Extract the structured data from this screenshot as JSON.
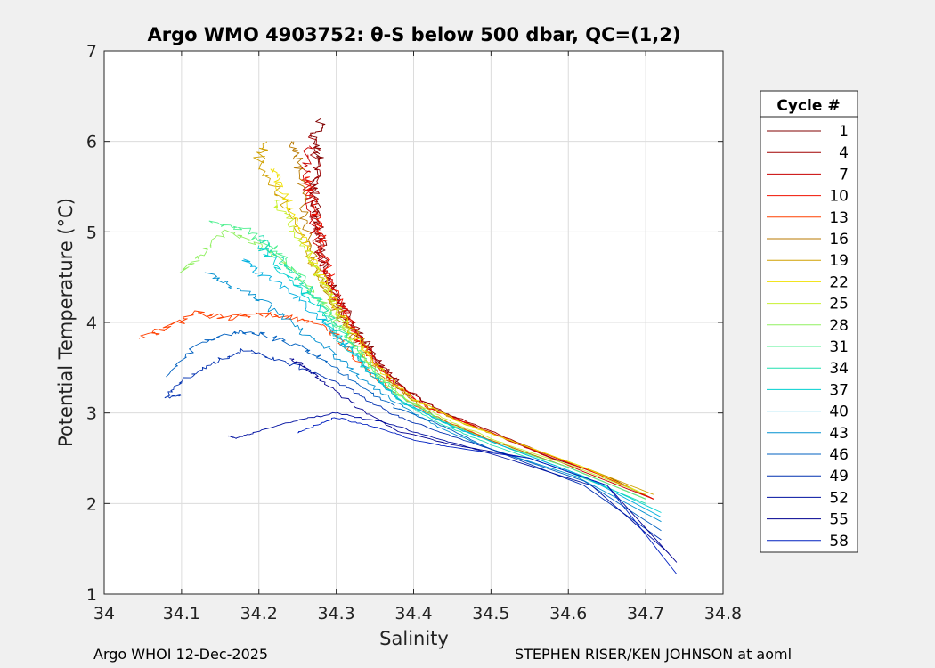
{
  "chart_data": {
    "type": "line",
    "title": "Argo WMO 4903752: θ-S below 500 dbar,  QC=(1,2)",
    "xlabel": "Salinity",
    "ylabel": "Potential Temperature (°C)",
    "xlim": [
      34,
      34.8
    ],
    "ylim": [
      1,
      7
    ],
    "xticks": [
      "34",
      "34.1",
      "34.2",
      "34.3",
      "34.4",
      "34.5",
      "34.6",
      "34.7",
      "34.8"
    ],
    "yticks": [
      "1",
      "2",
      "3",
      "4",
      "5",
      "6",
      "7"
    ],
    "grid": true,
    "legend": {
      "title": "Cycle #",
      "position": "right",
      "entries": [
        {
          "label": "1",
          "color": "#800000"
        },
        {
          "label": "4",
          "color": "#a00000"
        },
        {
          "label": "7",
          "color": "#c80000"
        },
        {
          "label": "10",
          "color": "#f01000"
        },
        {
          "label": "13",
          "color": "#ff4000"
        },
        {
          "label": "16",
          "color": "#b87800"
        },
        {
          "label": "19",
          "color": "#d0a000"
        },
        {
          "label": "22",
          "color": "#f0e000"
        },
        {
          "label": "25",
          "color": "#c8f030"
        },
        {
          "label": "28",
          "color": "#90f060"
        },
        {
          "label": "31",
          "color": "#50f090"
        },
        {
          "label": "34",
          "color": "#20e0b0"
        },
        {
          "label": "37",
          "color": "#00d0d0"
        },
        {
          "label": "40",
          "color": "#00b0e0"
        },
        {
          "label": "43",
          "color": "#0090d0"
        },
        {
          "label": "46",
          "color": "#0060c0"
        },
        {
          "label": "49",
          "color": "#0030b0"
        },
        {
          "label": "52",
          "color": "#0010a0"
        },
        {
          "label": "55",
          "color": "#000090"
        },
        {
          "label": "58",
          "color": "#0020c0"
        }
      ]
    },
    "series": [
      {
        "name": "1",
        "x": [
          34.71,
          34.65,
          34.58,
          34.5,
          34.44,
          34.39,
          34.36,
          34.34,
          34.32,
          34.3,
          34.285,
          34.28,
          34.275,
          34.27,
          34.28,
          34.27,
          34.28
        ],
        "y": [
          2.05,
          2.3,
          2.5,
          2.78,
          3.0,
          3.25,
          3.5,
          3.75,
          4.0,
          4.3,
          4.6,
          4.9,
          5.2,
          5.5,
          5.8,
          6.0,
          6.25
        ]
      },
      {
        "name": "4",
        "x": [
          34.71,
          34.64,
          34.57,
          34.5,
          34.44,
          34.39,
          34.36,
          34.33,
          34.31,
          34.295,
          34.28,
          34.275,
          34.27,
          34.275,
          34.27
        ],
        "y": [
          2.05,
          2.32,
          2.55,
          2.8,
          3.0,
          3.25,
          3.5,
          3.8,
          4.1,
          4.4,
          4.7,
          5.0,
          5.3,
          5.6,
          6.1
        ]
      },
      {
        "name": "7",
        "x": [
          34.71,
          34.62,
          34.55,
          34.48,
          34.42,
          34.38,
          34.35,
          34.33,
          34.31,
          34.29,
          34.28,
          34.27,
          34.265,
          34.26,
          34.265
        ],
        "y": [
          2.05,
          2.35,
          2.6,
          2.85,
          3.05,
          3.3,
          3.55,
          3.85,
          4.15,
          4.45,
          4.75,
          5.05,
          5.35,
          5.65,
          5.95
        ]
      },
      {
        "name": "10",
        "x": [
          34.71,
          34.64,
          34.56,
          34.48,
          34.42,
          34.38,
          34.35,
          34.33,
          34.31,
          34.295,
          34.285,
          34.28,
          34.27,
          34.26
        ],
        "y": [
          2.05,
          2.32,
          2.58,
          2.85,
          3.05,
          3.3,
          3.55,
          3.8,
          4.1,
          4.4,
          4.7,
          5.0,
          5.3,
          5.6
        ]
      },
      {
        "name": "13",
        "x": [
          34.7,
          34.6,
          34.5,
          34.43,
          34.37,
          34.33,
          34.3,
          34.27,
          34.24,
          34.2,
          34.16,
          34.12,
          34.08,
          34.045
        ],
        "y": [
          2.05,
          2.4,
          2.7,
          2.95,
          3.25,
          3.55,
          3.85,
          4.0,
          4.05,
          4.1,
          4.05,
          4.1,
          3.95,
          3.82
        ]
      },
      {
        "name": "16",
        "x": [
          34.7,
          34.6,
          34.5,
          34.43,
          34.38,
          34.34,
          34.31,
          34.29,
          34.27,
          34.26,
          34.255,
          34.25,
          34.245
        ],
        "y": [
          2.05,
          2.4,
          2.7,
          2.95,
          3.25,
          3.6,
          3.95,
          4.3,
          4.7,
          5.1,
          5.5,
          5.8,
          6.0
        ]
      },
      {
        "name": "19",
        "x": [
          34.71,
          34.62,
          34.53,
          34.46,
          34.4,
          34.36,
          34.33,
          34.3,
          34.28,
          34.26,
          34.24,
          34.22,
          34.2,
          34.21
        ],
        "y": [
          2.1,
          2.4,
          2.68,
          2.9,
          3.15,
          3.45,
          3.8,
          4.15,
          4.5,
          4.85,
          5.2,
          5.5,
          5.8,
          6.0
        ]
      },
      {
        "name": "22",
        "x": [
          34.7,
          34.62,
          34.53,
          34.46,
          34.4,
          34.36,
          34.33,
          34.3,
          34.28,
          34.26,
          34.245,
          34.23,
          34.22
        ],
        "y": [
          2.1,
          2.4,
          2.68,
          2.9,
          3.15,
          3.45,
          3.8,
          4.15,
          4.5,
          4.85,
          5.15,
          5.45,
          5.7
        ]
      },
      {
        "name": "25",
        "x": [
          34.7,
          34.61,
          34.52,
          34.45,
          34.39,
          34.35,
          34.32,
          34.3,
          34.28,
          34.26,
          34.24,
          34.22
        ],
        "y": [
          2.1,
          2.4,
          2.65,
          2.9,
          3.15,
          3.45,
          3.8,
          4.15,
          4.5,
          4.8,
          5.1,
          5.35
        ]
      },
      {
        "name": "28",
        "x": [
          34.7,
          34.6,
          34.51,
          34.44,
          34.38,
          34.34,
          34.31,
          34.28,
          34.24,
          34.2,
          34.16,
          34.13,
          34.1
        ],
        "y": [
          2.05,
          2.4,
          2.65,
          2.9,
          3.2,
          3.55,
          3.9,
          4.25,
          4.6,
          4.85,
          5.0,
          4.8,
          4.55
        ]
      },
      {
        "name": "31",
        "x": [
          34.7,
          34.6,
          34.51,
          34.44,
          34.38,
          34.34,
          34.31,
          34.28,
          34.25,
          34.22,
          34.18,
          34.14
        ],
        "y": [
          2.05,
          2.4,
          2.65,
          2.9,
          3.2,
          3.55,
          3.9,
          4.2,
          4.55,
          4.8,
          5.05,
          5.1
        ]
      },
      {
        "name": "34",
        "x": [
          34.7,
          34.6,
          34.5,
          34.43,
          34.38,
          34.34,
          34.31,
          34.28,
          34.25,
          34.22,
          34.2
        ],
        "y": [
          2.0,
          2.35,
          2.65,
          2.9,
          3.15,
          3.5,
          3.85,
          4.2,
          4.5,
          4.75,
          4.95
        ]
      },
      {
        "name": "37",
        "x": [
          34.72,
          34.62,
          34.52,
          34.45,
          34.39,
          34.35,
          34.31,
          34.28,
          34.25,
          34.22,
          34.2
        ],
        "y": [
          1.9,
          2.3,
          2.62,
          2.85,
          3.1,
          3.4,
          3.75,
          4.1,
          4.4,
          4.65,
          4.85
        ]
      },
      {
        "name": "40",
        "x": [
          34.72,
          34.62,
          34.52,
          34.45,
          34.39,
          34.35,
          34.31,
          34.28,
          34.24,
          34.2,
          34.18
        ],
        "y": [
          1.85,
          2.3,
          2.62,
          2.85,
          3.1,
          3.4,
          3.75,
          4.05,
          4.35,
          4.55,
          4.7
        ]
      },
      {
        "name": "43",
        "x": [
          34.72,
          34.61,
          34.5,
          34.43,
          34.38,
          34.33,
          34.29,
          34.25,
          34.21,
          34.17,
          34.13
        ],
        "y": [
          1.8,
          2.3,
          2.6,
          2.85,
          3.1,
          3.4,
          3.7,
          3.95,
          4.2,
          4.4,
          4.55
        ]
      },
      {
        "name": "46",
        "x": [
          34.72,
          34.62,
          34.5,
          34.44,
          34.38,
          34.33,
          34.29,
          34.25,
          34.21,
          34.17,
          34.12,
          34.08
        ],
        "y": [
          1.7,
          2.25,
          2.6,
          2.85,
          3.05,
          3.3,
          3.55,
          3.75,
          3.85,
          3.9,
          3.75,
          3.4
        ]
      },
      {
        "name": "49",
        "x": [
          34.72,
          34.62,
          34.5,
          34.43,
          34.37,
          34.32,
          34.27,
          34.22,
          34.18,
          34.14,
          34.1,
          34.08,
          34.1
        ],
        "y": [
          1.6,
          2.2,
          2.6,
          2.8,
          3.0,
          3.25,
          3.45,
          3.6,
          3.7,
          3.55,
          3.35,
          3.17,
          3.2
        ]
      },
      {
        "name": "52",
        "x": [
          34.73,
          34.63,
          34.5,
          34.43,
          34.36,
          34.3,
          34.25,
          34.2,
          34.17,
          34.16
        ],
        "y": [
          1.45,
          2.2,
          2.55,
          2.72,
          2.9,
          3.0,
          2.92,
          2.8,
          2.72,
          2.75
        ]
      },
      {
        "name": "55",
        "x": [
          34.74,
          34.65,
          34.55,
          34.45,
          34.38,
          34.33,
          34.29,
          34.26,
          34.24
        ],
        "y": [
          1.35,
          2.2,
          2.5,
          2.65,
          2.8,
          3.05,
          3.3,
          3.5,
          3.6
        ]
      },
      {
        "name": "58",
        "x": [
          34.74,
          34.65,
          34.55,
          34.45,
          34.4,
          34.35,
          34.3,
          34.27,
          34.25
        ],
        "y": [
          1.22,
          2.2,
          2.5,
          2.62,
          2.7,
          2.85,
          2.95,
          2.85,
          2.78
        ]
      }
    ]
  },
  "footer": {
    "left": "Argo WHOI 12-Dec-2025",
    "right": "STEPHEN RISER/KEN JOHNSON at aoml"
  }
}
